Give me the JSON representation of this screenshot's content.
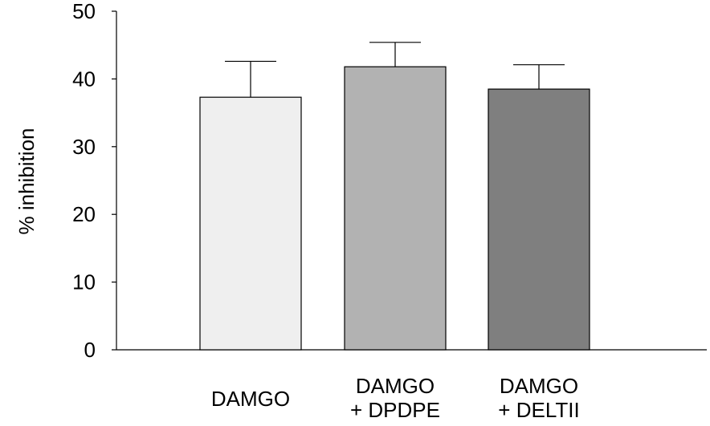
{
  "chart_data": {
    "type": "bar",
    "title": "",
    "xlabel": "",
    "ylabel": "% inhibition",
    "ylim": [
      0,
      50
    ],
    "yticks": [
      0,
      10,
      20,
      30,
      40,
      50
    ],
    "grid": false,
    "categories": [
      [
        "DAMGO"
      ],
      [
        "DAMGO",
        "+ DPDPE"
      ],
      [
        "DAMGO",
        "+ DELTII"
      ]
    ],
    "values": [
      37.3,
      41.8,
      38.5
    ],
    "errors": [
      5.3,
      3.6,
      3.6
    ],
    "colors": [
      "#efefef",
      "#b2b2b2",
      "#7f7f7f"
    ]
  }
}
